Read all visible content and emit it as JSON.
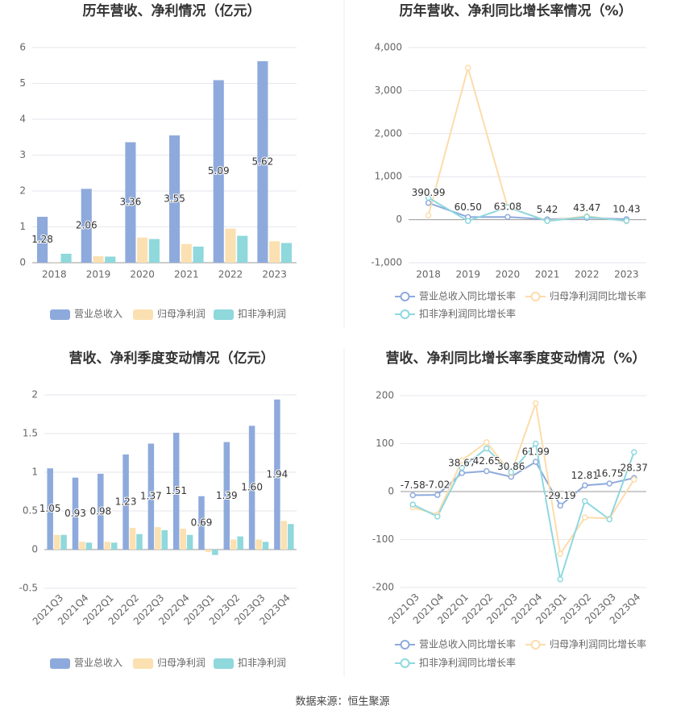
{
  "chart_data": [
    {
      "type": "bar",
      "title": "历年营收、净利情况（亿元）",
      "categories": [
        "2018",
        "2019",
        "2020",
        "2021",
        "2022",
        "2023"
      ],
      "ylim": [
        0,
        6
      ],
      "yticks": [
        0,
        1,
        2,
        3,
        4,
        5,
        6
      ],
      "grid": true,
      "series": [
        {
          "name": "营业总收入",
          "color": "#8eaadc",
          "show_labels": true,
          "values": [
            1.28,
            2.06,
            3.36,
            3.55,
            5.09,
            5.62
          ]
        },
        {
          "name": "归母净利润",
          "color": "#fbe0b1",
          "values": [
            0.005,
            0.18,
            0.7,
            0.52,
            0.95,
            0.6
          ]
        },
        {
          "name": "扣非净利润",
          "color": "#8fd8dc",
          "values": [
            0.25,
            0.17,
            0.66,
            0.45,
            0.75,
            0.55
          ]
        }
      ]
    },
    {
      "type": "line",
      "title": "历年营收、净利同比增长率情况（%）",
      "categories": [
        "2018",
        "2019",
        "2020",
        "2021",
        "2022",
        "2023"
      ],
      "ylim": [
        -1000,
        4000
      ],
      "yticks": [
        {
          "value": -1000,
          "label": "-1,000"
        },
        0,
        {
          "value": 1000,
          "label": "1,000"
        },
        {
          "value": 2000,
          "label": "2,000"
        },
        {
          "value": 3000,
          "label": "3,000"
        },
        {
          "value": 4000,
          "label": "4,000"
        }
      ],
      "grid": true,
      "series": [
        {
          "name": "营业总收入同比增长率",
          "color": "#8eaadc",
          "show_labels": true,
          "values": [
            390.99,
            60.5,
            63.08,
            5.42,
            43.47,
            10.43
          ],
          "value_labels": [
            "390.99",
            "60.50",
            "63.08",
            "5.42",
            "43.47",
            "10.43"
          ]
        },
        {
          "name": "归母净利润同比增长率",
          "color": "#fddcaa",
          "values": [
            100,
            3530,
            290,
            -26,
            83,
            -37
          ]
        },
        {
          "name": "扣非净利润同比增长率",
          "color": "#8ed8df",
          "values": [
            510,
            -30,
            290,
            -32,
            67,
            -27
          ]
        }
      ]
    },
    {
      "type": "bar",
      "title": "营收、净利季度变动情况（亿元）",
      "categories": [
        "2021Q3",
        "2021Q4",
        "2022Q1",
        "2022Q2",
        "2022Q3",
        "2022Q4",
        "2023Q1",
        "2023Q2",
        "2023Q3",
        "2023Q4"
      ],
      "ylim": [
        -0.5,
        2
      ],
      "yticks": [
        -0.5,
        0,
        0.5,
        1,
        1.5,
        2
      ],
      "grid": true,
      "series": [
        {
          "name": "营业总收入",
          "color": "#8eaadc",
          "show_labels": true,
          "values": [
            1.05,
            0.93,
            0.98,
            1.23,
            1.37,
            1.51,
            0.69,
            1.39,
            1.6,
            1.94
          ],
          "value_labels": [
            "1.05",
            "0.93",
            "0.98",
            "1.23",
            "1.37",
            "1.51",
            "0.69",
            "1.39",
            "1.60",
            "1.94"
          ]
        },
        {
          "name": "归母净利润",
          "color": "#fbe0b1",
          "values": [
            0.19,
            0.1,
            0.1,
            0.28,
            0.29,
            0.27,
            -0.03,
            0.13,
            0.13,
            0.37
          ]
        },
        {
          "name": "扣非净利润",
          "color": "#8fd8dc",
          "values": [
            0.19,
            0.09,
            0.09,
            0.2,
            0.25,
            0.19,
            -0.07,
            0.17,
            0.1,
            0.33
          ]
        }
      ]
    },
    {
      "type": "line",
      "title": "营收、净利同比增长率季度变动情况（%）",
      "categories": [
        "2021Q3",
        "2021Q4",
        "2022Q1",
        "2022Q2",
        "2022Q3",
        "2022Q4",
        "2023Q1",
        "2023Q2",
        "2023Q3",
        "2023Q4"
      ],
      "ylim": [
        -200,
        200
      ],
      "yticks": [
        -200,
        -100,
        0,
        100,
        200
      ],
      "grid": true,
      "series": [
        {
          "name": "营业总收入同比增长率",
          "color": "#8eaadc",
          "show_labels": true,
          "values": [
            -7.58,
            -7.02,
            38.67,
            42.65,
            30.86,
            61.99,
            -29.19,
            12.81,
            16.75,
            28.37
          ]
        },
        {
          "name": "归母净利润同比增长率",
          "color": "#fddcaa",
          "values": [
            -33,
            -48,
            65,
            103,
            38,
            184,
            -130,
            -54,
            -56,
            25
          ]
        },
        {
          "name": "扣非净利润同比增长率",
          "color": "#8ed8df",
          "values": [
            -27,
            -52,
            50,
            90,
            40,
            100,
            -183,
            -20,
            -58,
            82
          ]
        }
      ]
    }
  ],
  "source": "数据来源：恒生聚源"
}
